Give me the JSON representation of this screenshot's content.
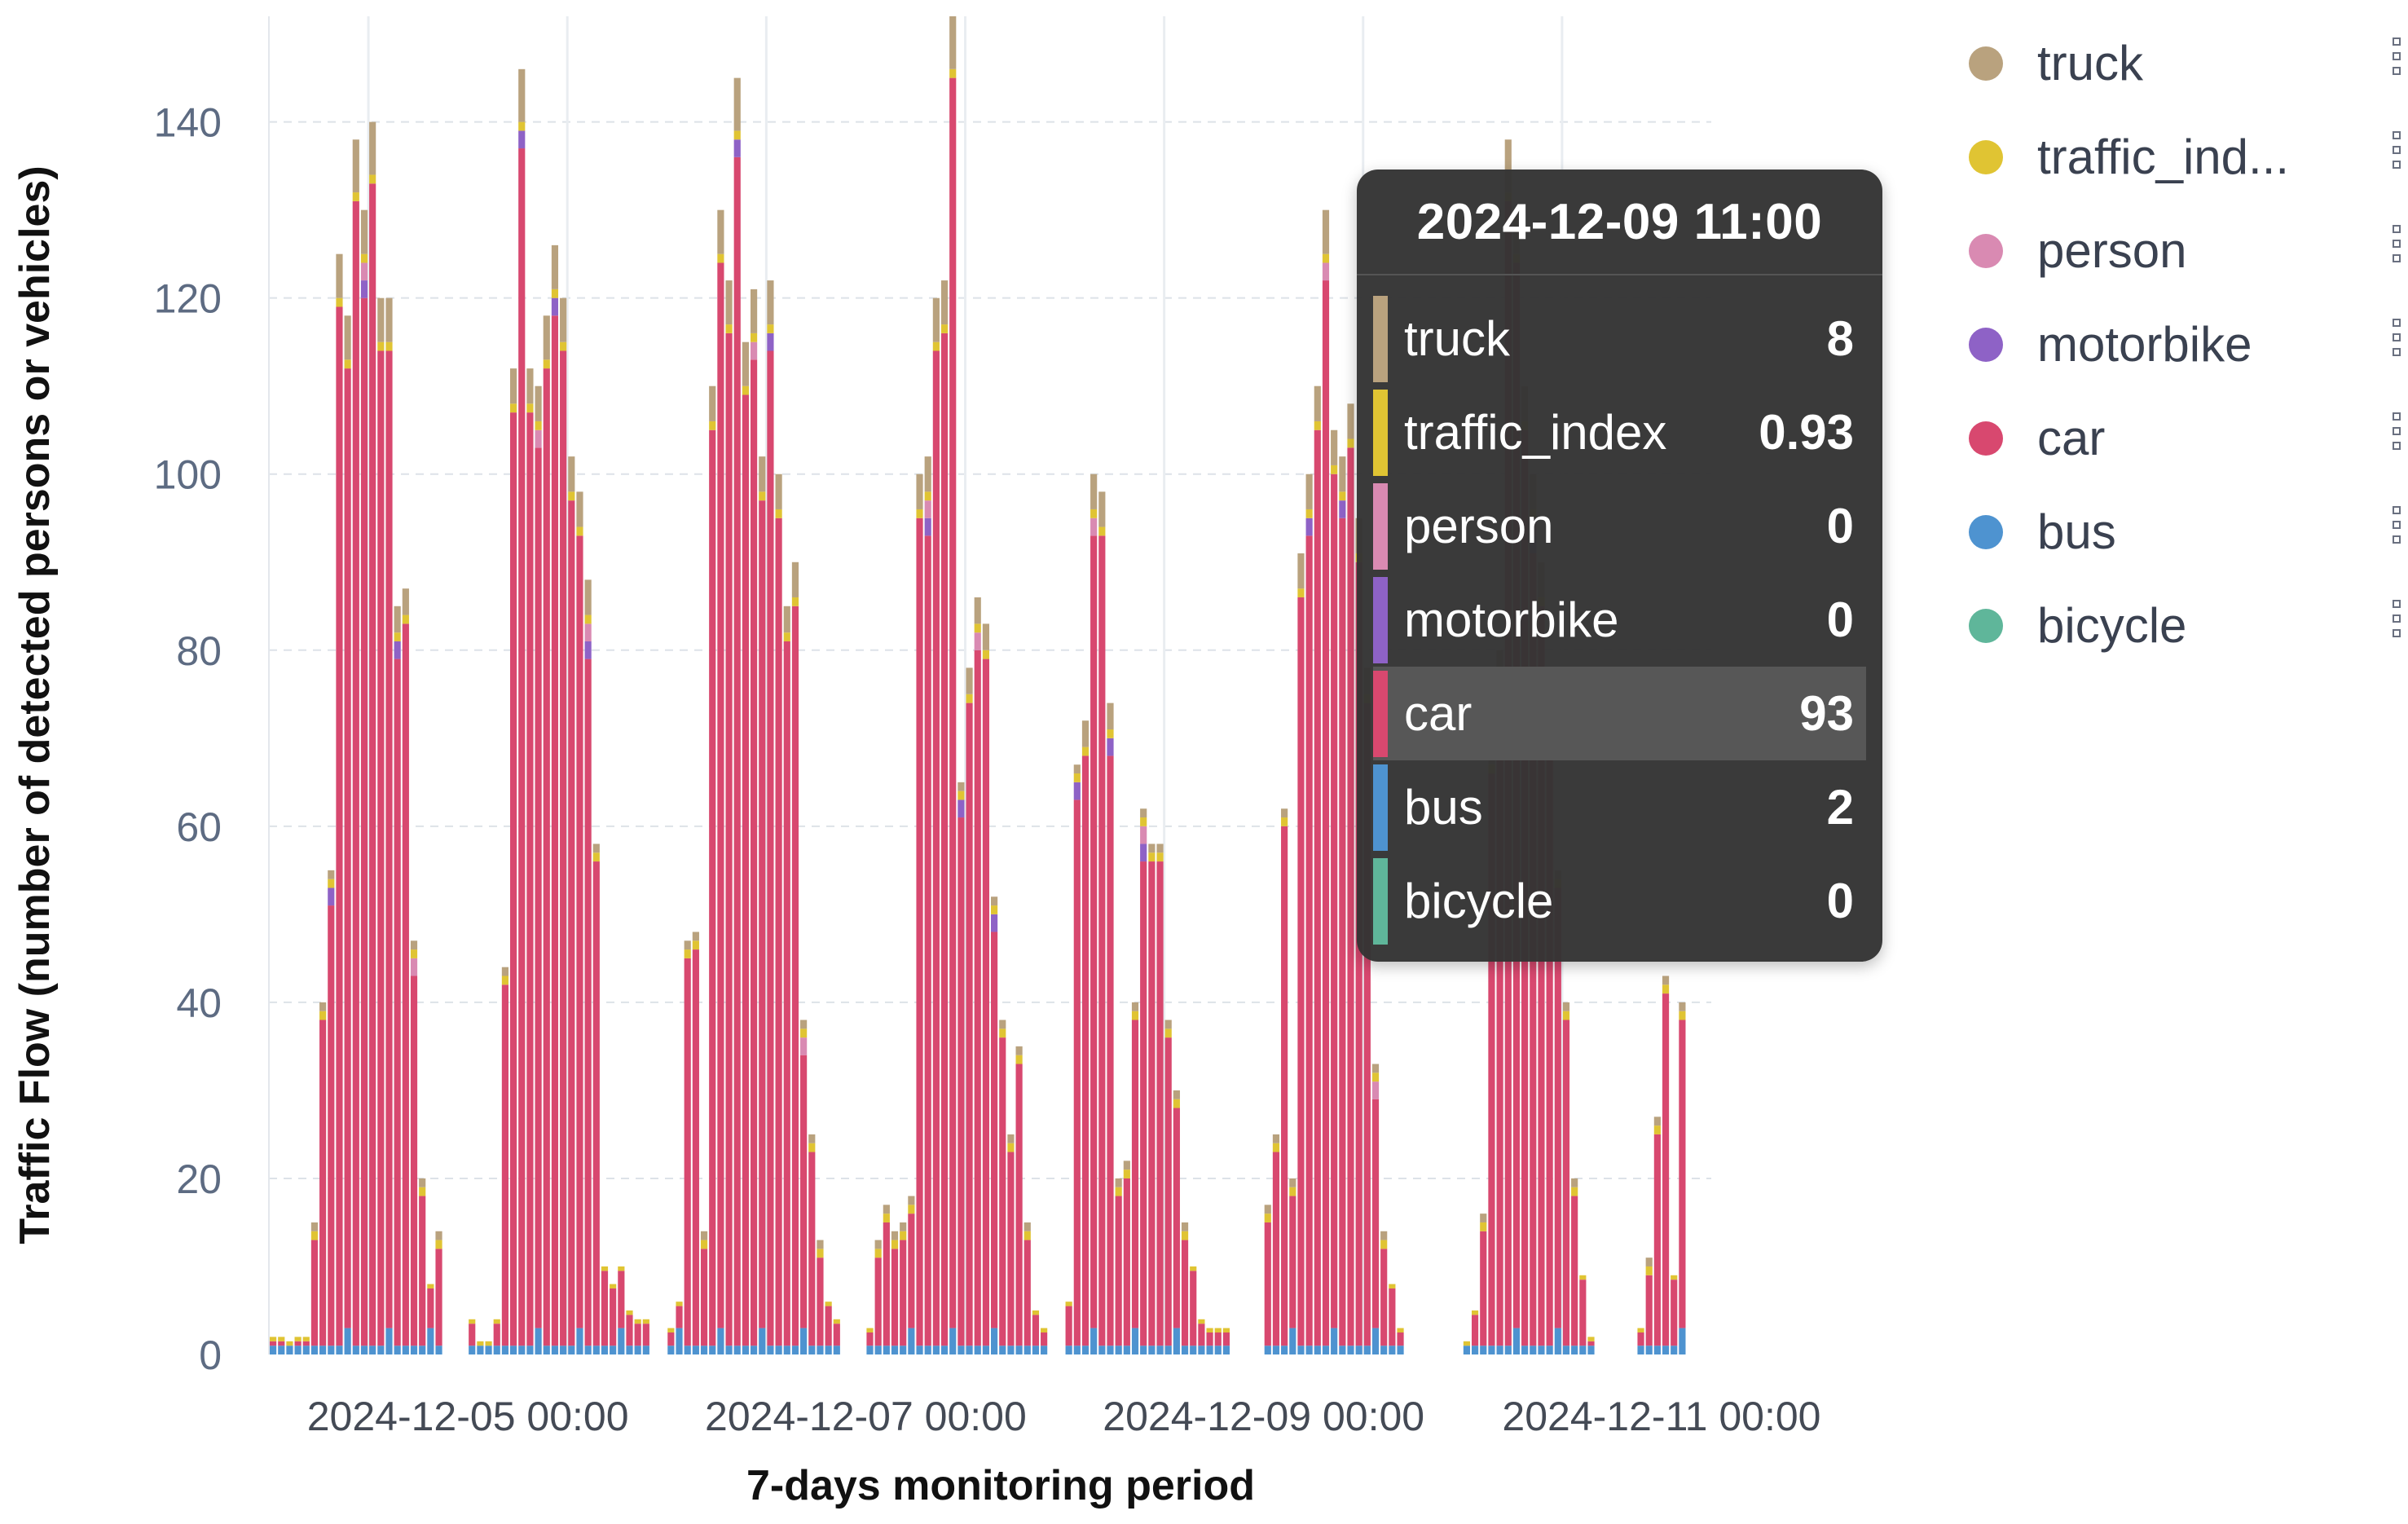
{
  "chart_data": {
    "type": "bar",
    "stacked": true,
    "title": "",
    "xlabel": "7-days monitoring period",
    "ylabel": "Traffic Flow (number of detected persons or vehicles)",
    "ylim": [
      0,
      152
    ],
    "yticks": [
      0,
      20,
      40,
      60,
      80,
      100,
      120,
      140
    ],
    "x_tick_labels": [
      "2024-12-05 00:00",
      "2024-12-07 00:00",
      "2024-12-09 00:00",
      "2024-12-11 00:00"
    ],
    "x_tick_positions": [
      18,
      66,
      114,
      162
    ],
    "hours_per_day_segment": 24,
    "day_segments": [
      {
        "start_hour": -6,
        "totals": [
          2,
          2,
          1,
          2,
          2,
          15,
          40,
          55,
          125,
          118,
          138,
          130,
          140,
          120,
          120,
          85,
          87,
          47,
          20,
          8,
          14
        ]
      },
      {
        "start_hour": 18,
        "totals": [
          4,
          1,
          1,
          4,
          44,
          112,
          146,
          112,
          110,
          118,
          126,
          120,
          102,
          98,
          88,
          58,
          10,
          8,
          10,
          5,
          4,
          4
        ]
      },
      {
        "start_hour": 42,
        "totals": [
          3,
          6,
          47,
          48,
          14,
          110,
          130,
          122,
          145,
          115,
          121,
          102,
          122,
          100,
          85,
          90,
          38,
          25,
          13,
          6,
          4
        ]
      },
      {
        "start_hour": 66,
        "totals": [
          3,
          13,
          17,
          14,
          15,
          18,
          100,
          102,
          120,
          122,
          152,
          65,
          78,
          86,
          83,
          52,
          38,
          25,
          35,
          15,
          5,
          3
        ]
      },
      {
        "start_hour": 90,
        "totals": [
          6,
          67,
          72,
          100,
          98,
          74,
          20,
          22,
          40,
          62,
          58,
          58,
          38,
          30,
          15,
          10,
          4,
          3,
          3,
          3
        ]
      },
      {
        "start_hour": 114,
        "totals": [
          17,
          25,
          62,
          20,
          91,
          100,
          110,
          130,
          105,
          102,
          108,
          95,
          78,
          33,
          14,
          8,
          3
        ]
      },
      {
        "start_hour": 138,
        "totals": [
          1,
          5,
          16,
          68,
          80,
          138,
          130,
          110,
          100,
          90,
          75,
          55,
          40,
          20,
          9,
          2
        ]
      },
      {
        "start_hour": 159,
        "totals": [
          3,
          11,
          27,
          43,
          9,
          40
        ]
      }
    ],
    "series": [
      {
        "name": "truck",
        "color": "#b9a27e"
      },
      {
        "name": "traffic_index",
        "color": "#e0c433"
      },
      {
        "name": "person",
        "color": "#d98ab2"
      },
      {
        "name": "motorbike",
        "color": "#8e62c6"
      },
      {
        "name": "car",
        "color": "#d8486f"
      },
      {
        "name": "bus",
        "color": "#4e93d0"
      },
      {
        "name": "bicycle",
        "color": "#5fb69a"
      }
    ],
    "legend_position": "right",
    "grid": "horizontal-dashed"
  },
  "legend": {
    "items": [
      {
        "label": "truck",
        "color": "#b9a27e"
      },
      {
        "label": "traffic_ind...",
        "color": "#e0c433"
      },
      {
        "label": "person",
        "color": "#d98ab2"
      },
      {
        "label": "motorbike",
        "color": "#8e62c6"
      },
      {
        "label": "car",
        "color": "#d8486f"
      },
      {
        "label": "bus",
        "color": "#4e93d0"
      },
      {
        "label": "bicycle",
        "color": "#5fb69a"
      }
    ]
  },
  "tooltip": {
    "title": "2024-12-09 11:00",
    "rows": [
      {
        "label": "truck",
        "value": "8",
        "color": "#b9a27e"
      },
      {
        "label": "traffic_index",
        "value": "0.93",
        "color": "#e0c433"
      },
      {
        "label": "person",
        "value": "0",
        "color": "#d98ab2"
      },
      {
        "label": "motorbike",
        "value": "0",
        "color": "#8e62c6"
      },
      {
        "label": "car",
        "value": "93",
        "color": "#d8486f",
        "highlighted": true
      },
      {
        "label": "bus",
        "value": "2",
        "color": "#4e93d0"
      },
      {
        "label": "bicycle",
        "value": "0",
        "color": "#5fb69a"
      }
    ]
  }
}
